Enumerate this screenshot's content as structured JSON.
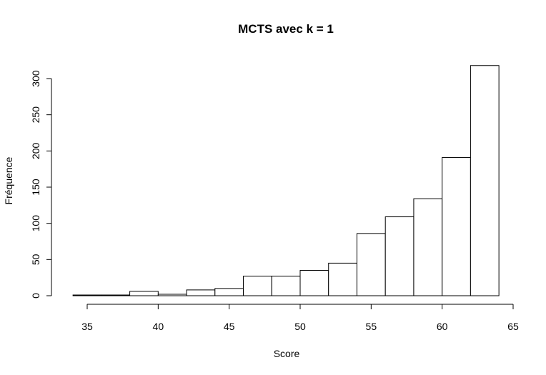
{
  "chart_data": {
    "type": "bar",
    "title": "MCTS avec k = 1",
    "xlabel": "Score",
    "ylabel": "Fréquence",
    "bins": [
      {
        "start": 34,
        "end": 36,
        "count": 1
      },
      {
        "start": 36,
        "end": 38,
        "count": 1
      },
      {
        "start": 38,
        "end": 40,
        "count": 6
      },
      {
        "start": 40,
        "end": 42,
        "count": 2
      },
      {
        "start": 42,
        "end": 44,
        "count": 8
      },
      {
        "start": 44,
        "end": 46,
        "count": 10
      },
      {
        "start": 46,
        "end": 48,
        "count": 27
      },
      {
        "start": 48,
        "end": 50,
        "count": 27
      },
      {
        "start": 50,
        "end": 52,
        "count": 35
      },
      {
        "start": 52,
        "end": 54,
        "count": 45
      },
      {
        "start": 54,
        "end": 56,
        "count": 86
      },
      {
        "start": 56,
        "end": 58,
        "count": 109
      },
      {
        "start": 58,
        "end": 60,
        "count": 134
      },
      {
        "start": 60,
        "end": 62,
        "count": 191
      },
      {
        "start": 62,
        "end": 64,
        "count": 318
      }
    ],
    "xlim": [
      35,
      65
    ],
    "ylim": [
      0,
      300
    ],
    "xticks": [
      "35",
      "40",
      "45",
      "50",
      "55",
      "60",
      "65"
    ],
    "yticks": [
      "0",
      "50",
      "100",
      "150",
      "200",
      "250",
      "300"
    ],
    "grid": false,
    "legend": "none"
  }
}
